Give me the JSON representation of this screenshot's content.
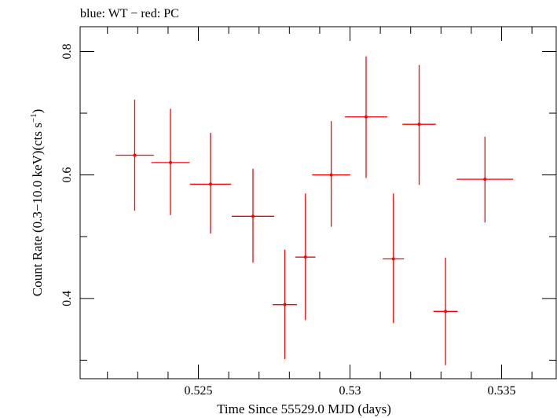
{
  "header_label": "blue: WT − red: PC",
  "chart_data": {
    "type": "scatter",
    "xlabel": "Time Since 55529.0 MJD (days)",
    "ylabel_main": "Count Rate (0.3−10.0 keV)(cts s",
    "ylabel_sup": "−1",
    "ylabel_close": ")",
    "xlim": [
      0.5211,
      0.5368
    ],
    "ylim": [
      0.27,
      0.84
    ],
    "x_ticks": [
      {
        "value": 0.525,
        "label": "0.525"
      },
      {
        "value": 0.53,
        "label": "0.53"
      },
      {
        "value": 0.535,
        "label": "0.535"
      }
    ],
    "y_ticks": [
      {
        "value": 0.4,
        "label": "0.4"
      },
      {
        "value": 0.6,
        "label": "0.6"
      },
      {
        "value": 0.8,
        "label": "0.8"
      }
    ],
    "series": [
      {
        "color": "#ff0000",
        "points": [
          {
            "x": 0.5229,
            "y": 0.632,
            "xerr": 0.00063,
            "ylo": 0.542,
            "yhi": 0.722
          },
          {
            "x": 0.52408,
            "y": 0.62,
            "xerr": 0.00063,
            "ylo": 0.535,
            "yhi": 0.707
          },
          {
            "x": 0.5254,
            "y": 0.585,
            "xerr": 0.00068,
            "ylo": 0.505,
            "yhi": 0.668
          },
          {
            "x": 0.5268,
            "y": 0.533,
            "xerr": 0.0007,
            "ylo": 0.458,
            "yhi": 0.61
          },
          {
            "x": 0.52785,
            "y": 0.39,
            "xerr": 0.0004,
            "ylo": 0.302,
            "yhi": 0.479
          },
          {
            "x": 0.52853,
            "y": 0.467,
            "xerr": 0.00033,
            "ylo": 0.365,
            "yhi": 0.57
          },
          {
            "x": 0.52938,
            "y": 0.6,
            "xerr": 0.00063,
            "ylo": 0.516,
            "yhi": 0.687
          },
          {
            "x": 0.53053,
            "y": 0.694,
            "xerr": 0.0007,
            "ylo": 0.595,
            "yhi": 0.792
          },
          {
            "x": 0.53143,
            "y": 0.464,
            "xerr": 0.00035,
            "ylo": 0.36,
            "yhi": 0.57
          },
          {
            "x": 0.53228,
            "y": 0.682,
            "xerr": 0.00055,
            "ylo": 0.584,
            "yhi": 0.778
          },
          {
            "x": 0.53315,
            "y": 0.379,
            "xerr": 0.0004,
            "ylo": 0.292,
            "yhi": 0.466
          },
          {
            "x": 0.53445,
            "y": 0.593,
            "xerr": 0.00093,
            "ylo": 0.523,
            "yhi": 0.662
          }
        ]
      }
    ]
  }
}
